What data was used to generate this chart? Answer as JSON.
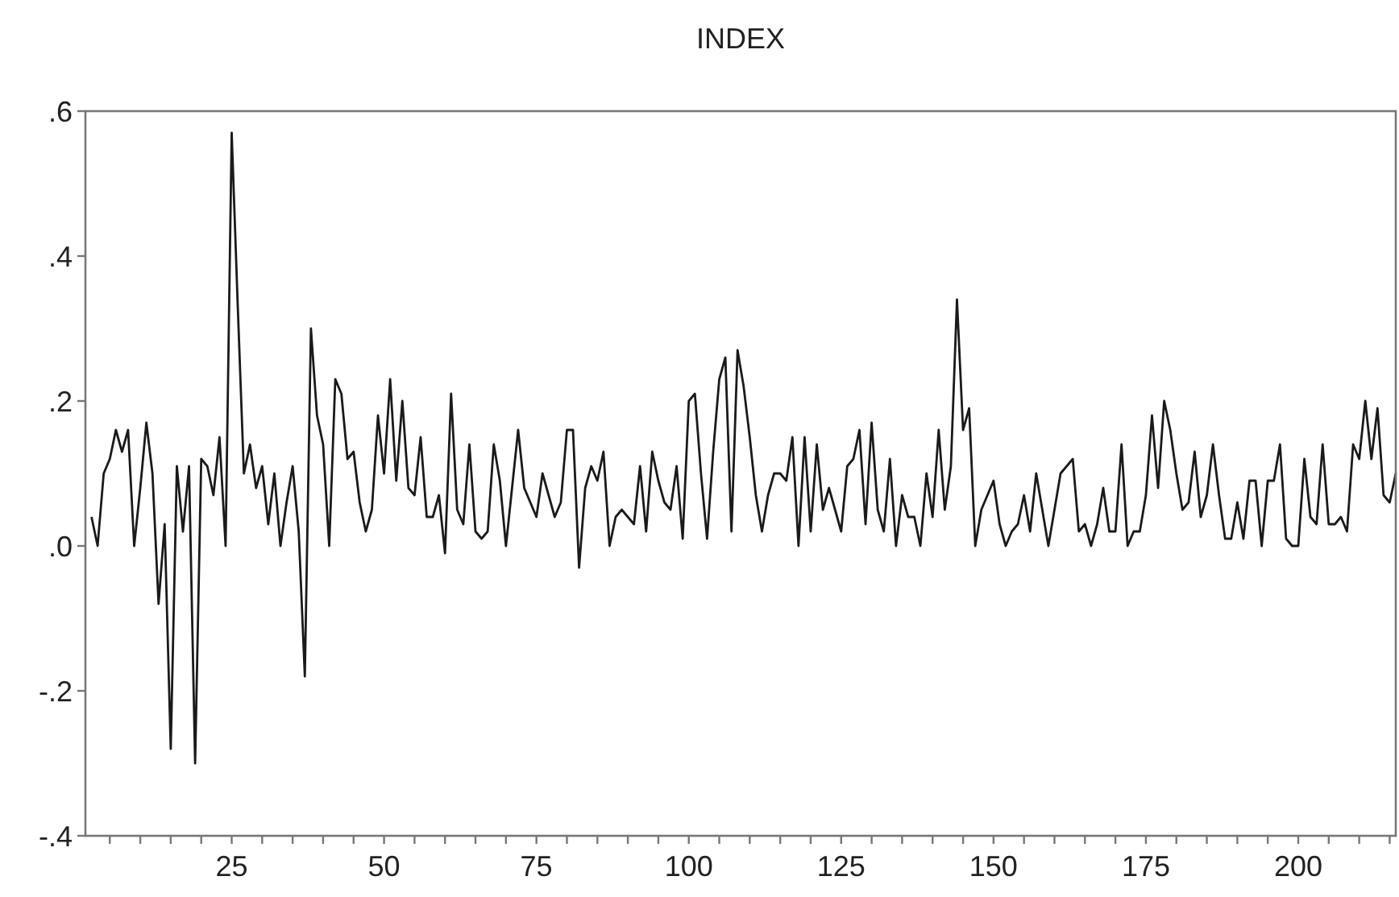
{
  "chart_data": {
    "type": "line",
    "title": "INDEX",
    "xlim": [
      1,
      216
    ],
    "xticks": [
      {
        "value": 5,
        "label": null
      },
      {
        "value": 10,
        "label": null
      },
      {
        "value": 15,
        "label": null
      },
      {
        "value": 20,
        "label": null
      },
      25,
      {
        "value": 30,
        "label": null
      },
      {
        "value": 35,
        "label": null
      },
      {
        "value": 40,
        "label": null
      },
      {
        "value": 45,
        "label": null
      },
      50,
      {
        "value": 55,
        "label": null
      },
      {
        "value": 60,
        "label": null
      },
      {
        "value": 65,
        "label": null
      },
      {
        "value": 70,
        "label": null
      },
      75,
      {
        "value": 80,
        "label": null
      },
      {
        "value": 85,
        "label": null
      },
      {
        "value": 90,
        "label": null
      },
      {
        "value": 95,
        "label": null
      },
      100,
      {
        "value": 105,
        "label": null
      },
      {
        "value": 110,
        "label": null
      },
      {
        "value": 115,
        "label": null
      },
      {
        "value": 120,
        "label": null
      },
      125,
      {
        "value": 130,
        "label": null
      },
      {
        "value": 135,
        "label": null
      },
      {
        "value": 140,
        "label": null
      },
      {
        "value": 145,
        "label": null
      },
      150,
      {
        "value": 155,
        "label": null
      },
      {
        "value": 160,
        "label": null
      },
      {
        "value": 165,
        "label": null
      },
      {
        "value": 170,
        "label": null
      },
      175,
      {
        "value": 180,
        "label": null
      },
      {
        "value": 185,
        "label": null
      },
      {
        "value": 190,
        "label": null
      },
      {
        "value": 195,
        "label": null
      },
      200,
      {
        "value": 205,
        "label": null
      },
      {
        "value": 210,
        "label": null
      },
      {
        "value": 215,
        "label": null
      }
    ],
    "ylim": [
      -0.4,
      0.6
    ],
    "yticks": [
      {
        "value": -0.4,
        "label": "-.4"
      },
      {
        "value": -0.2,
        "label": "-.2"
      },
      {
        "value": 0,
        "label": ".0"
      },
      {
        "value": 0.2,
        "label": ".2"
      },
      {
        "value": 0.4,
        "label": ".4"
      },
      {
        "value": 0.6,
        "label": ".6"
      }
    ],
    "x": [
      2,
      3,
      4,
      5,
      6,
      7,
      8,
      9,
      10,
      11,
      12,
      13,
      14,
      15,
      16,
      17,
      18,
      19,
      20,
      21,
      22,
      23,
      24,
      25,
      26,
      27,
      28,
      29,
      30,
      31,
      32,
      33,
      34,
      35,
      36,
      37,
      38,
      39,
      40,
      41,
      42,
      43,
      44,
      45,
      46,
      47,
      48,
      49,
      50,
      51,
      52,
      53,
      54,
      55,
      56,
      57,
      58,
      59,
      60,
      61,
      62,
      63,
      64,
      65,
      66,
      67,
      68,
      69,
      70,
      71,
      72,
      73,
      74,
      75,
      76,
      77,
      78,
      79,
      80,
      81,
      82,
      83,
      84,
      85,
      86,
      87,
      88,
      89,
      90,
      91,
      92,
      93,
      94,
      95,
      96,
      97,
      98,
      99,
      100,
      101,
      102,
      103,
      104,
      105,
      106,
      107,
      108,
      109,
      110,
      111,
      112,
      113,
      114,
      115,
      116,
      117,
      118,
      119,
      120,
      121,
      122,
      123,
      124,
      125,
      126,
      127,
      128,
      129,
      130,
      131,
      132,
      133,
      134,
      135,
      136,
      137,
      138,
      139,
      140,
      141,
      142,
      143,
      144,
      145,
      146,
      147,
      148,
      149,
      150,
      151,
      152,
      153,
      154,
      155,
      156,
      157,
      158,
      159,
      160,
      161,
      162,
      163,
      164,
      165,
      166,
      167,
      168,
      169,
      170,
      171,
      172,
      173,
      174,
      175,
      176,
      177,
      178,
      179,
      180,
      181,
      182,
      183,
      184,
      185,
      186,
      187,
      188,
      189,
      190,
      191,
      192,
      193,
      194,
      195,
      196,
      197,
      198,
      199,
      200,
      201,
      202,
      203,
      204,
      205,
      206,
      207,
      208,
      209,
      210,
      211,
      212,
      213,
      214,
      215,
      216
    ],
    "series": [
      {
        "color": "#1a1a1a",
        "values": [
          0.04,
          0,
          0.1,
          0.12,
          0.16,
          0.13,
          0.16,
          0.0,
          0.08,
          0.17,
          0.1,
          -0.08,
          0.03,
          -0.28,
          0.11,
          0.02,
          0.11,
          -0.3,
          0.12,
          0.11,
          0.07,
          0.15,
          0.0,
          0.57,
          0.33,
          0.1,
          0.14,
          0.08,
          0.11,
          0.03,
          0.1,
          0.0,
          0.06,
          0.11,
          0.02,
          -0.18,
          0.3,
          0.18,
          0.14,
          0.0,
          0.23,
          0.21,
          0.12,
          0.13,
          0.06,
          0.02,
          0.05,
          0.18,
          0.1,
          0.23,
          0.09,
          0.2,
          0.08,
          0.07,
          0.15,
          0.04,
          0.04,
          0.07,
          -0.01,
          0.21,
          0.05,
          0.03,
          0.14,
          0.02,
          0.01,
          0.02,
          0.14,
          0.09,
          0,
          0.08,
          0.16,
          0.08,
          0.06,
          0.04,
          0.1,
          0.07,
          0.04,
          0.06,
          0.16,
          0.16,
          -0.03,
          0.08,
          0.11,
          0.09,
          0.13,
          0.0,
          0.04,
          0.05,
          0.04,
          0.03,
          0.11,
          0.02,
          0.13,
          0.09,
          0.06,
          0.05,
          0.11,
          0.01,
          0.2,
          0.21,
          0.1,
          0.01,
          0.13,
          0.23,
          0.26,
          0.02,
          0.27,
          0.22,
          0.15,
          0.07,
          0.02,
          0.07,
          0.1,
          0.1,
          0.09,
          0.15,
          0.0,
          0.15,
          0.02,
          0.14,
          0.05,
          0.08,
          0.05,
          0.02,
          0.11,
          0.12,
          0.16,
          0.03,
          0.17,
          0.05,
          0.02,
          0.12,
          0.0,
          0.07,
          0.04,
          0.04,
          0.0,
          0.1,
          0.04,
          0.16,
          0.05,
          0.11,
          0.34,
          0.16,
          0.19,
          0.0,
          0.05,
          0.07,
          0.09,
          0.03,
          0.0,
          0.02,
          0.03,
          0.07,
          0.02,
          0.1,
          0.05,
          0.0,
          0.05,
          0.1,
          0.11,
          0.12,
          0.02,
          0.03,
          0.0,
          0.03,
          0.08,
          0.02,
          0.02,
          0.14,
          0.0,
          0.02,
          0.02,
          0.07,
          0.18,
          0.08,
          0.2,
          0.16,
          0.1,
          0.05,
          0.06,
          0.13,
          0.04,
          0.07,
          0.14,
          0.07,
          0.01,
          0.01,
          0.06,
          0.01,
          0.09,
          0.09,
          0.0,
          0.09,
          0.09,
          0.14,
          0.01,
          0.0,
          0.0,
          0.12,
          0.04,
          0.03,
          0.14,
          0.03,
          0.03,
          0.04,
          0.02,
          0.14,
          0.12,
          0.2,
          0.12,
          0.19,
          0.07,
          0.06,
          0.1
        ]
      }
    ]
  }
}
